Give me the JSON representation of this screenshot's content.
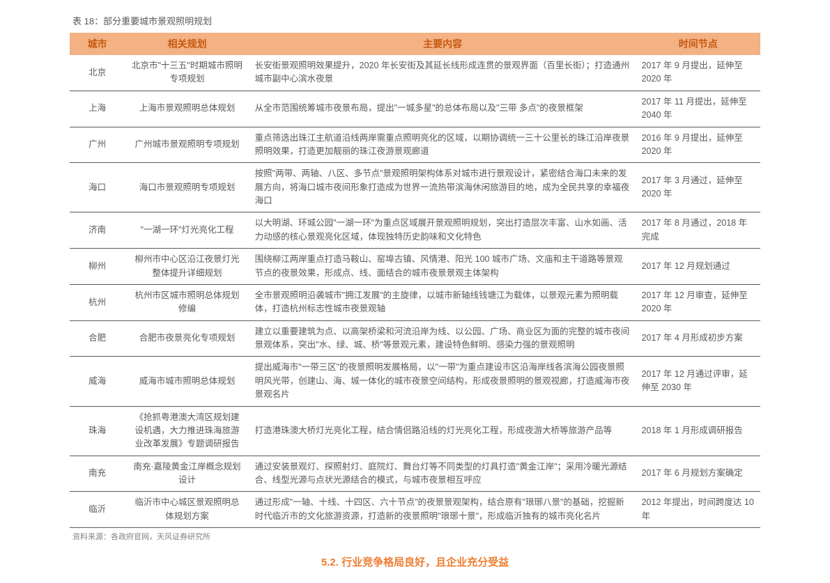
{
  "table_title": "表 18：部分重要城市景观照明规划",
  "columns": [
    "城市",
    "相关规划",
    "主要内容",
    "时间节点"
  ],
  "rows": [
    {
      "city": "北京",
      "plan": "北京市\"十三五\"时期城市照明专项规划",
      "content": "长安街景观照明效果提升，2020 年长安街及其延长线形成连贯的景观界面（百里长街）；打造通州城市副中心滨水夜景",
      "time": "2017 年 9 月提出，延伸至 2020 年"
    },
    {
      "city": "上海",
      "plan": "上海市景观照明总体规划",
      "content": "从全市范围统筹城市夜景布局，提出\"一城多星\"的总体布局以及\"三带  多点\"的夜景框架",
      "time": "2017 年 11 月提出，延伸至 2040 年"
    },
    {
      "city": "广州",
      "plan": "广州城市景观照明专项规划",
      "content": "重点筛选出珠江主航道沿线两岸需重点照明亮化的区域，以期协调统一三十公里长的珠江沿岸夜景照明效果，打造更加靓丽的珠江夜游景观廊道",
      "time": "2016 年 9 月提出，延伸至 2020 年"
    },
    {
      "city": "海口",
      "plan": "海口市景观照明专项规划",
      "content": "按照\"两带、两轴、八区、多节点\"景观照明架构体系对城市进行景观设计，紧密结合海口未来的发展方向，将海口城市夜间形象打造成为世界一流热带滨海休闲旅游目的地，成为全民共享的幸福夜海口",
      "time": "2017 年 3 月通过，延伸至 2020 年"
    },
    {
      "city": "济南",
      "plan": "\"一湖一环\"灯光亮化工程",
      "content": "以大明湖、环城公园\"一湖一环\"为重点区域展开景观照明规划，突出打造层次丰富、山水如画、活力动感的核心景观亮化区域，体现独特历史韵味和文化特色",
      "time": "2017 年 8 月通过，2018 年完成"
    },
    {
      "city": "柳州",
      "plan": "柳州市中心区沿江夜景灯光整体提升详细规划",
      "content": "围绕柳江两岸重点打造马鞍山、窑埠古镇、风情港、阳光 100 城市广场、文庙和主干道路等景观节点的夜景效果，形成点、线、面结合的城市夜景景观主体架构",
      "time": "2017 年 12 月规划通过"
    },
    {
      "city": "杭州",
      "plan": "杭州市区城市照明总体规划修编",
      "content": "全市景观照明沿袭城市\"拥江发展\"的主旋律，以城市新轴线钱塘江为载体，以景观元素为照明载体，打造杭州标志性城市夜景观轴",
      "time": "2017 年 12 月审查，延伸至 2020 年"
    },
    {
      "city": "合肥",
      "plan": "合肥市夜景亮化专项规划",
      "content": "建立以重要建筑为点、以高架桥梁和河流沿岸为线、以公园、广场、商业区为面的完整的城市夜间景观体系，突出\"水、绿、城、桥\"等景观元素，建设特色鲜明、感染力强的景观照明",
      "time": "2017 年 4 月形成初步方案"
    },
    {
      "city": "威海",
      "plan": "威海市城市照明总体规划",
      "content": "提出威海市\"一带三区\"的夜景照明发展格局，以\"一带\"为重点建设市区沿海岸线各滨海公园夜景照明风光带，创建山、海、城一体化的城市夜景空间结构，形成夜景照明的景观视廊，打造威海市夜景观名片",
      "time": "2017 年 12 月通过评审，延伸至 2030 年"
    },
    {
      "city": "珠海",
      "plan": "《抢抓粤港澳大湾区规划建设机遇，大力推进珠海旅游业改革发展》专题调研报告",
      "content": "打造港珠澳大桥灯光亮化工程，结合情侣路沿线的灯光亮化工程，形成夜游大桥等旅游产品等",
      "time": "2018 年 1 月形成调研报告"
    },
    {
      "city": "南充",
      "plan": "南充·嘉陵黄金江岸概念规划设计",
      "content": "通过安装景观灯、探照射灯、庭院灯、舞台灯等不同类型的灯具打造\"黄金江岸\"；采用冷暖光源结合、线型光源与点状光源结合的模式，与城市夜景相互呼应",
      "time": "2017 年 6 月规划方案确定"
    },
    {
      "city": "临沂",
      "plan": "临沂市中心城区景观照明总体规划方案",
      "content": "通过形成\"一轴、十线、十四区、六十节点\"的夜景景观架构，结合原有\"琅琊八景\"的基础，挖掘新时代临沂市的文化旅游资源，打造新的夜景照明\"琅琊十景\"，形成临沂独有的城市亮化名片",
      "time": "2012 年提出，时间跨度达 10 年"
    }
  ],
  "source": "资料来源：各政府官网，天风证券研究所",
  "footer_fragment": {
    "num": "5.2.",
    "txt": "行业竞争格局良好，且企业充分受益"
  }
}
